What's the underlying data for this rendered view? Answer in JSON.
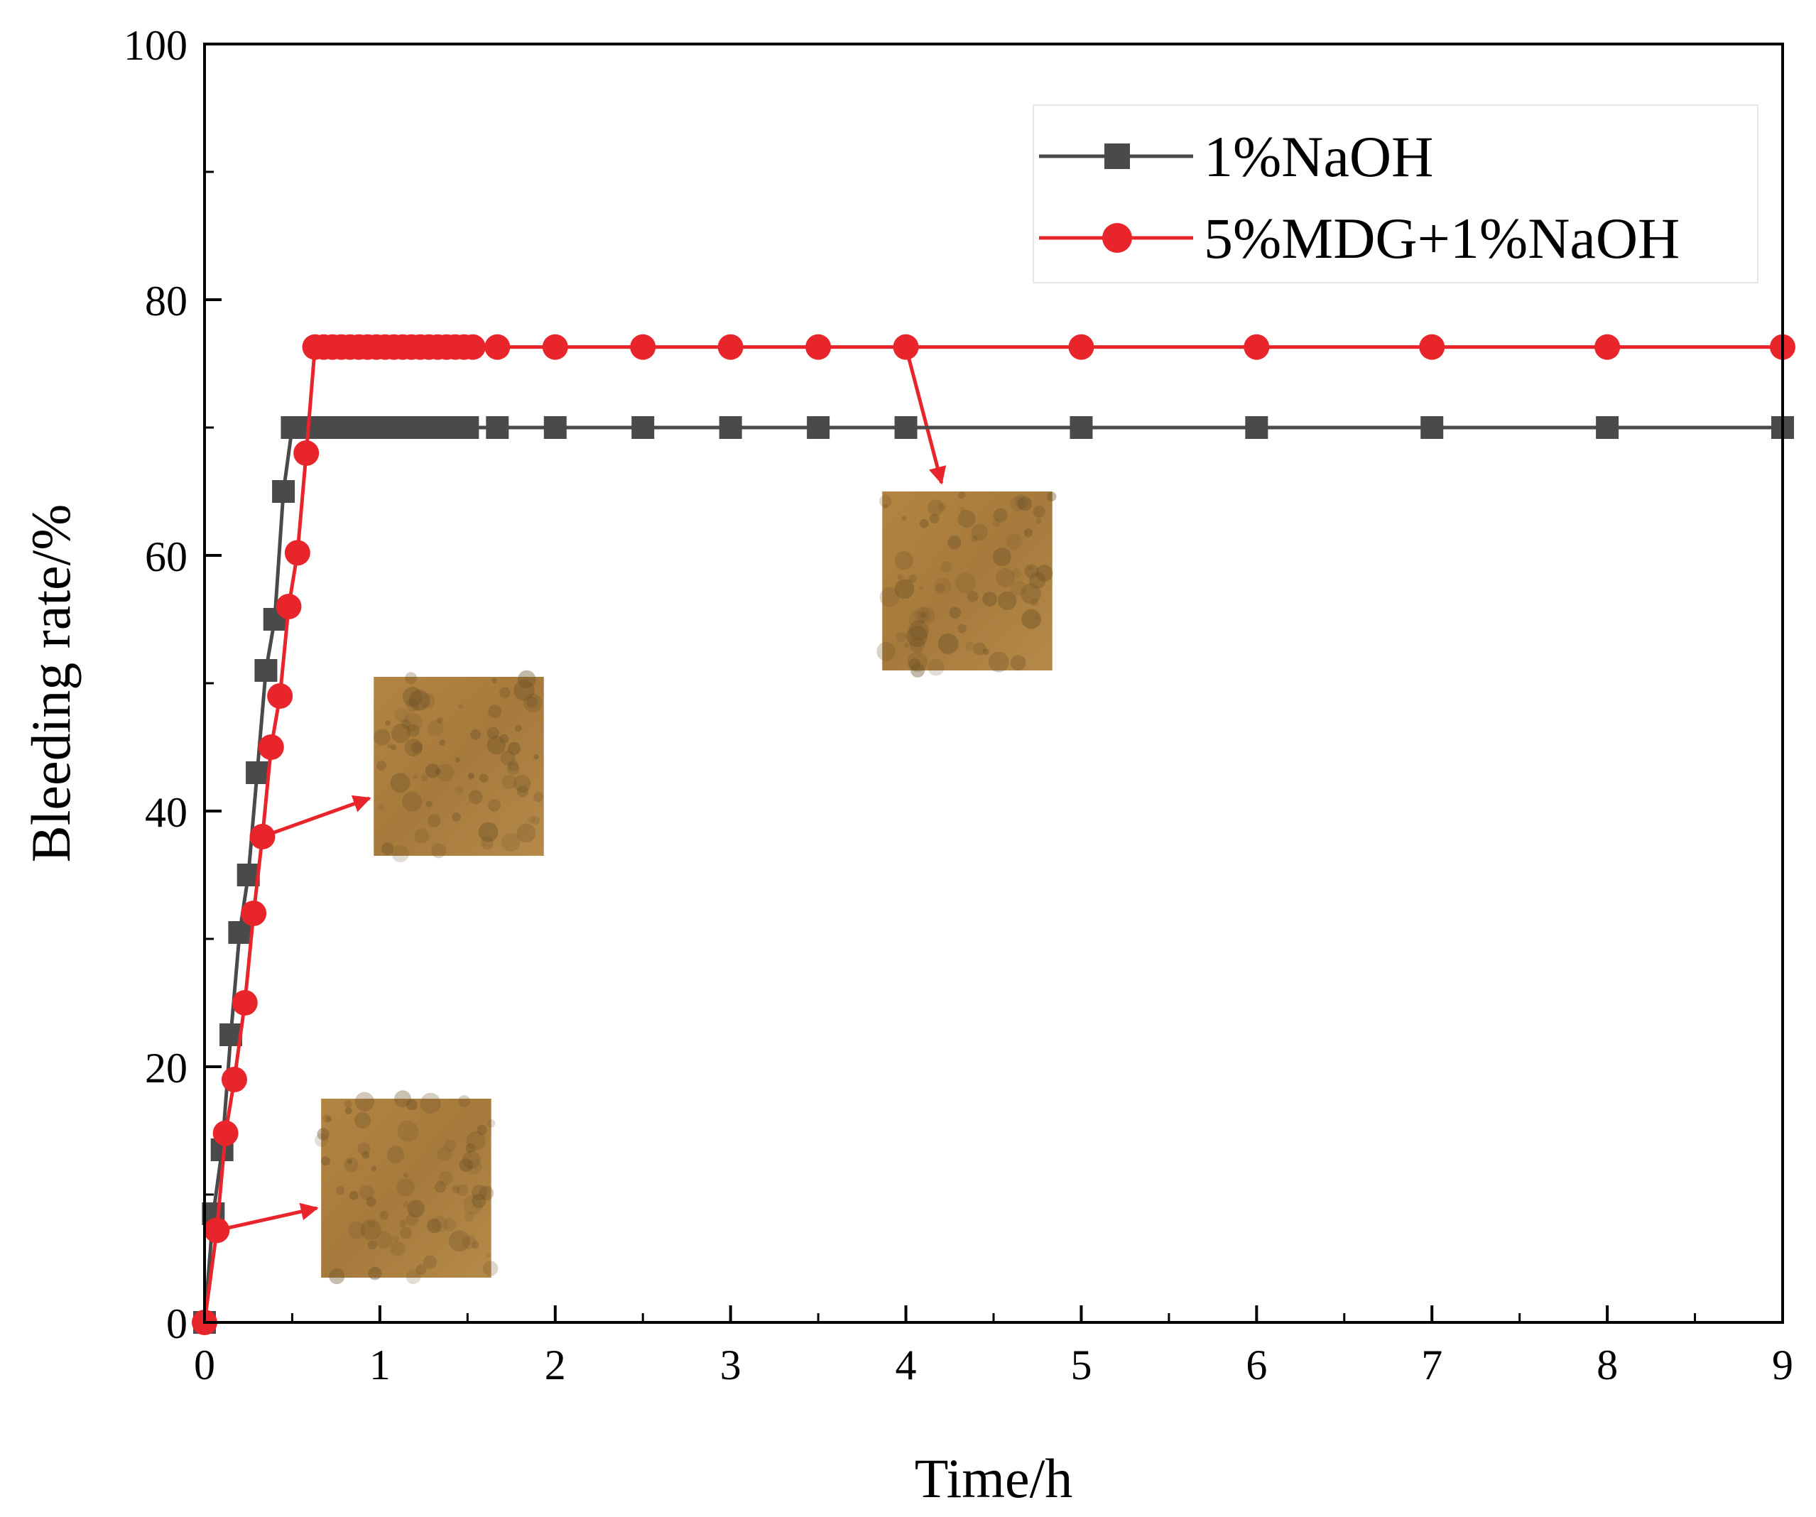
{
  "chart_data": {
    "type": "line",
    "xlabel": "Time/h",
    "ylabel": "Bleeding rate/%",
    "xlim": [
      0,
      9
    ],
    "ylim": [
      0,
      100
    ],
    "xticks": [
      "0",
      "1",
      "2",
      "3",
      "4",
      "5",
      "6",
      "7",
      "8",
      "9"
    ],
    "yticks": [
      "0",
      "20",
      "40",
      "60",
      "80",
      "100"
    ],
    "legend": "top-right",
    "series": [
      {
        "name": "1%NaOH",
        "color": "#4a4a4a",
        "marker": "square",
        "x": [
          0,
          0.05,
          0.1,
          0.15,
          0.2,
          0.25,
          0.3,
          0.35,
          0.4,
          0.45,
          0.5,
          0.55,
          0.6,
          0.65,
          0.7,
          0.75,
          0.8,
          0.85,
          0.9,
          0.95,
          1.0,
          1.05,
          1.1,
          1.15,
          1.2,
          1.25,
          1.3,
          1.35,
          1.4,
          1.45,
          1.5,
          1.67,
          2,
          2.5,
          3,
          3.5,
          4,
          5,
          6,
          7,
          8,
          9
        ],
        "y": [
          0,
          8.5,
          13.5,
          22.5,
          30.5,
          35,
          43,
          51,
          55,
          65,
          70,
          70,
          70,
          70,
          70,
          70,
          70,
          70,
          70,
          70,
          70,
          70,
          70,
          70,
          70,
          70,
          70,
          70,
          70,
          70,
          70,
          70,
          70,
          70,
          70,
          70,
          70,
          70,
          70,
          70,
          70,
          70
        ]
      },
      {
        "name": "5%MDG+1%NaOH",
        "color": "#e8252b",
        "marker": "circle",
        "x": [
          0,
          0.07,
          0.12,
          0.17,
          0.23,
          0.28,
          0.33,
          0.38,
          0.43,
          0.48,
          0.53,
          0.58,
          0.63,
          0.68,
          0.73,
          0.78,
          0.83,
          0.88,
          0.93,
          0.98,
          1.03,
          1.08,
          1.13,
          1.18,
          1.23,
          1.28,
          1.33,
          1.38,
          1.43,
          1.48,
          1.53,
          1.67,
          2,
          2.5,
          3,
          3.5,
          4,
          5,
          6,
          7,
          8,
          9
        ],
        "y": [
          0,
          7.2,
          14.8,
          19,
          25,
          32,
          38,
          45,
          49,
          56,
          60.2,
          68,
          76.3,
          76.3,
          76.3,
          76.3,
          76.3,
          76.3,
          76.3,
          76.3,
          76.3,
          76.3,
          76.3,
          76.3,
          76.3,
          76.3,
          76.3,
          76.3,
          76.3,
          76.3,
          76.3,
          76.3,
          76.3,
          76.3,
          76.3,
          76.3,
          76.3,
          76.3,
          76.3,
          76.3,
          76.3,
          76.3
        ]
      }
    ],
    "annotations": [
      {
        "name": "photo-early",
        "points_to": {
          "x": 0.07,
          "y": 7.2
        },
        "photo_center": {
          "x": 1.15,
          "y": 10.5
        },
        "photo_size": {
          "w": 0.97,
          "h": 14
        }
      },
      {
        "name": "photo-mid",
        "points_to": {
          "x": 0.33,
          "y": 38
        },
        "photo_center": {
          "x": 1.45,
          "y": 43.5
        },
        "photo_size": {
          "w": 0.97,
          "h": 14
        }
      },
      {
        "name": "photo-late",
        "points_to": {
          "x": 4.0,
          "y": 76.3
        },
        "photo_center": {
          "x": 4.35,
          "y": 58
        },
        "photo_size": {
          "w": 0.97,
          "h": 14
        }
      }
    ]
  }
}
